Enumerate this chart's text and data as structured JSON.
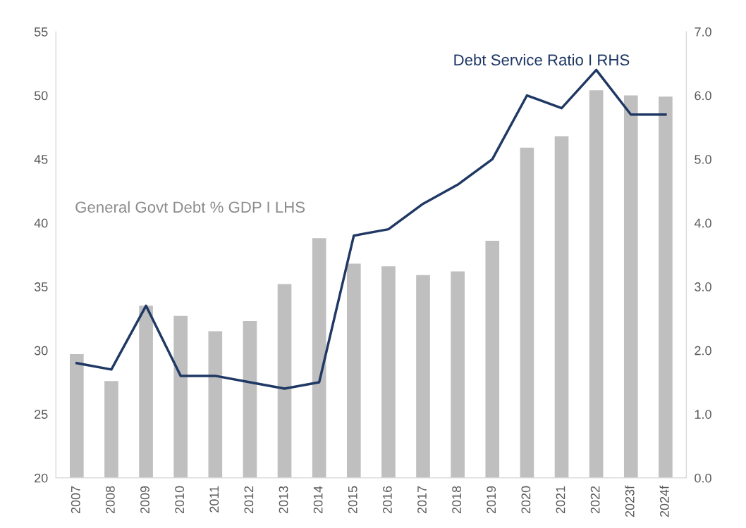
{
  "chart_data": {
    "type": "bar",
    "categories": [
      "2007",
      "2008",
      "2009",
      "2010",
      "2011",
      "2012",
      "2013",
      "2014",
      "2015",
      "2016",
      "2017",
      "2018",
      "2019",
      "2020",
      "2021",
      "2022",
      "2023f",
      "2024f"
    ],
    "series": [
      {
        "name": "General Govt Debt % GDP I LHS",
        "color": "#bfbfbf",
        "values": [
          29.7,
          27.6,
          33.5,
          32.7,
          31.5,
          32.3,
          35.2,
          38.8,
          36.8,
          36.6,
          35.9,
          36.2,
          38.6,
          45.9,
          46.8,
          50.4,
          50.0,
          49.9
        ]
      },
      {
        "name": "Debt Service Ratio I RHS",
        "type": "line",
        "axis": "y2",
        "color": "#1f3864",
        "values": [
          1.8,
          1.7,
          2.7,
          1.6,
          1.6,
          1.5,
          1.4,
          1.5,
          3.8,
          3.9,
          4.3,
          4.6,
          5.0,
          6.0,
          5.8,
          6.4,
          5.7,
          5.7
        ]
      }
    ],
    "ylim": [
      20,
      55
    ],
    "yticks": [
      20,
      25,
      30,
      35,
      40,
      45,
      50,
      55
    ],
    "y2lim": [
      0,
      7
    ],
    "y2ticks": [
      {
        "value": 0,
        "label": "0.0"
      },
      {
        "value": 1,
        "label": "1.0"
      },
      {
        "value": 2,
        "label": "2.0"
      },
      {
        "value": 3,
        "label": "3.0"
      },
      {
        "value": 4,
        "label": "4.0"
      },
      {
        "value": 5,
        "label": "5.0"
      },
      {
        "value": 6,
        "label": "6.0"
      },
      {
        "value": 7,
        "label": "7.0"
      }
    ],
    "grid": false,
    "legend": false
  }
}
